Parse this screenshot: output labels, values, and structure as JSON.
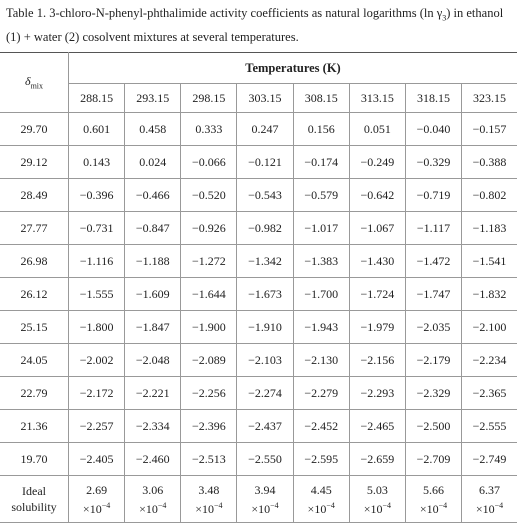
{
  "caption": {
    "before": "Table 1. 3-chloro-N-phenyl-phthalimide activity coefficients as natural logarithms (ln γ",
    "sub": "3",
    "after": ") in ethanol (1) + water (2) cosolvent mixtures at several temperatures."
  },
  "table": {
    "row_header": {
      "symbol": "δ",
      "sub": "mix"
    },
    "group_header": "Temperatures (K)",
    "temperatures": [
      "288.15",
      "293.15",
      "298.15",
      "303.15",
      "308.15",
      "313.15",
      "318.15",
      "323.15"
    ],
    "rows": [
      {
        "label": "29.70",
        "cells": [
          "0.601",
          "0.458",
          "0.333",
          "0.247",
          "0.156",
          "0.051",
          "−0.040",
          "−0.157"
        ]
      },
      {
        "label": "29.12",
        "cells": [
          "0.143",
          "0.024",
          "−0.066",
          "−0.121",
          "−0.174",
          "−0.249",
          "−0.329",
          "−0.388"
        ]
      },
      {
        "label": "28.49",
        "cells": [
          "−0.396",
          "−0.466",
          "−0.520",
          "−0.543",
          "−0.579",
          "−0.642",
          "−0.719",
          "−0.802"
        ]
      },
      {
        "label": "27.77",
        "cells": [
          "−0.731",
          "−0.847",
          "−0.926",
          "−0.982",
          "−1.017",
          "−1.067",
          "−1.117",
          "−1.183"
        ]
      },
      {
        "label": "26.98",
        "cells": [
          "−1.116",
          "−1.188",
          "−1.272",
          "−1.342",
          "−1.383",
          "−1.430",
          "−1.472",
          "−1.541"
        ]
      },
      {
        "label": "26.12",
        "cells": [
          "−1.555",
          "−1.609",
          "−1.644",
          "−1.673",
          "−1.700",
          "−1.724",
          "−1.747",
          "−1.832"
        ]
      },
      {
        "label": "25.15",
        "cells": [
          "−1.800",
          "−1.847",
          "−1.900",
          "−1.910",
          "−1.943",
          "−1.979",
          "−2.035",
          "−2.100"
        ]
      },
      {
        "label": "24.05",
        "cells": [
          "−2.002",
          "−2.048",
          "−2.089",
          "−2.103",
          "−2.130",
          "−2.156",
          "−2.179",
          "−2.234"
        ]
      },
      {
        "label": "22.79",
        "cells": [
          "−2.172",
          "−2.221",
          "−2.256",
          "−2.274",
          "−2.279",
          "−2.293",
          "−2.329",
          "−2.365"
        ]
      },
      {
        "label": "21.36",
        "cells": [
          "−2.257",
          "−2.334",
          "−2.396",
          "−2.437",
          "−2.452",
          "−2.465",
          "−2.500",
          "−2.555"
        ]
      },
      {
        "label": "19.70",
        "cells": [
          "−2.405",
          "−2.460",
          "−2.513",
          "−2.550",
          "−2.595",
          "−2.659",
          "−2.709",
          "−2.749"
        ]
      }
    ],
    "ideal": {
      "label": "Ideal solubility",
      "mantissas": [
        "2.69",
        "3.06",
        "3.48",
        "3.94",
        "4.45",
        "5.03",
        "5.66",
        "6.37"
      ],
      "factor": "×10",
      "exponent": "−4"
    }
  }
}
